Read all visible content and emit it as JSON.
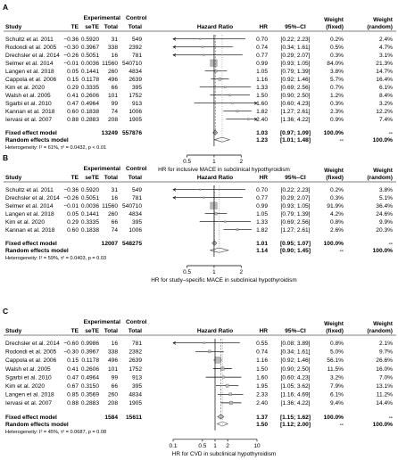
{
  "chart_data": [
    {
      "type": "forest",
      "panel_label": "A",
      "group_header": "Experimental",
      "group_header2": "Control",
      "columns": {
        "study": "Study",
        "te": "TE",
        "sete": "seTE",
        "exp_total": "Total",
        "ctrl_total": "Total",
        "hazard_ratio": "Hazard Ratio",
        "hr": "HR",
        "ci": "95%–CI",
        "weight_fixed": "Weight (fixed)",
        "weight_random": "Weight (random)"
      },
      "studies": [
        {
          "name": "Schultz et al. 2011",
          "te": "−0.36",
          "sete": "0.5920",
          "exp_total": "31",
          "ctrl_total": "549",
          "hr": 0.7,
          "lo": 0.22,
          "hi": 2.23,
          "hr_text": "0.70",
          "ci_text": "[0.22; 2.23]",
          "w_fixed": "0.2%",
          "w_random": "2.4%"
        },
        {
          "name": "Rodondi et al. 2005",
          "te": "−0.30",
          "sete": "0.3967",
          "exp_total": "338",
          "ctrl_total": "2392",
          "hr": 0.74,
          "lo": 0.34,
          "hi": 1.61,
          "hr_text": "0.74",
          "ci_text": "[0.34; 1.61]",
          "w_fixed": "0.5%",
          "w_random": "4.7%"
        },
        {
          "name": "Drechsler et al. 2014",
          "te": "−0.26",
          "sete": "0.5051",
          "exp_total": "16",
          "ctrl_total": "781",
          "hr": 0.77,
          "lo": 0.29,
          "hi": 2.07,
          "hr_text": "0.77",
          "ci_text": "[0.29; 2.07]",
          "w_fixed": "0.3%",
          "w_random": "3.1%"
        },
        {
          "name": "Selmer et al. 2014",
          "te": "−0.01",
          "sete": "0.0036",
          "exp_total": "11560",
          "ctrl_total": "540710",
          "hr": 0.99,
          "lo": 0.93,
          "hi": 1.05,
          "hr_text": "0.99",
          "ci_text": "[0.93; 1.05]",
          "w_fixed": "84.0%",
          "w_random": "21.3%"
        },
        {
          "name": "Langen et al. 2018",
          "te": "0.05",
          "sete": "0.1441",
          "exp_total": "260",
          "ctrl_total": "4834",
          "hr": 1.05,
          "lo": 0.79,
          "hi": 1.39,
          "hr_text": "1.05",
          "ci_text": "[0.79; 1.39]",
          "w_fixed": "3.8%",
          "w_random": "14.7%"
        },
        {
          "name": "Cappola et al. 2006",
          "te": "0.15",
          "sete": "0.1178",
          "exp_total": "496",
          "ctrl_total": "2639",
          "hr": 1.16,
          "lo": 0.92,
          "hi": 1.46,
          "hr_text": "1.16",
          "ci_text": "[0.92; 1.46]",
          "w_fixed": "5.7%",
          "w_random": "16.4%"
        },
        {
          "name": "Kim et al. 2020",
          "te": "0.29",
          "sete": "0.3335",
          "exp_total": "66",
          "ctrl_total": "395",
          "hr": 1.33,
          "lo": 0.69,
          "hi": 2.56,
          "hr_text": "1.33",
          "ci_text": "[0.69; 2.56]",
          "w_fixed": "0.7%",
          "w_random": "6.1%"
        },
        {
          "name": "Walsh et al. 2005",
          "te": "0.41",
          "sete": "0.2606",
          "exp_total": "101",
          "ctrl_total": "1752",
          "hr": 1.5,
          "lo": 0.9,
          "hi": 2.5,
          "hr_text": "1.50",
          "ci_text": "[0.90; 2.50]",
          "w_fixed": "1.2%",
          "w_random": "8.4%"
        },
        {
          "name": "Sgarbi et al. 2010",
          "te": "0.47",
          "sete": "0.4964",
          "exp_total": "99",
          "ctrl_total": "913",
          "hr": 1.6,
          "lo": 0.6,
          "hi": 4.23,
          "hr_text": "1.60",
          "ci_text": "[0.60; 4.23]",
          "w_fixed": "0.3%",
          "w_random": "3.2%"
        },
        {
          "name": "Kannan et al. 2018",
          "te": "0.60",
          "sete": "0.1838",
          "exp_total": "74",
          "ctrl_total": "1006",
          "hr": 1.82,
          "lo": 1.27,
          "hi": 2.61,
          "hr_text": "1.82",
          "ci_text": "[1.27; 2.61]",
          "w_fixed": "2.3%",
          "w_random": "12.2%"
        },
        {
          "name": "Iervasi et al. 2007",
          "te": "0.88",
          "sete": "0.2883",
          "exp_total": "208",
          "ctrl_total": "1905",
          "hr": 2.4,
          "lo": 1.36,
          "hi": 4.22,
          "hr_text": "2.40",
          "ci_text": "[1.36; 4.22]",
          "w_fixed": "0.9%",
          "w_random": "7.4%"
        }
      ],
      "fixed": {
        "label": "Fixed effect model",
        "exp_total": "13249",
        "ctrl_total": "557876",
        "hr": 1.03,
        "lo": 0.97,
        "hi": 1.09,
        "hr_text": "1.03",
        "ci_text": "[0.97; 1.09]",
        "w_fixed": "100.0%",
        "w_random": "--"
      },
      "random": {
        "label": "Random effects model",
        "hr": 1.23,
        "lo": 1.01,
        "hi": 1.48,
        "hr_text": "1.23",
        "ci_text": "[1.01; 1.48]",
        "w_fixed": "--",
        "w_random": "100.0%"
      },
      "heterogeneity": "Heterogeneity: I² = 61%, τ² = 0.0432, p < 0.01",
      "xaxis": {
        "ticks": [
          0.5,
          1,
          2
        ],
        "tick_labels": [
          "0.5",
          "1",
          "2"
        ],
        "range": [
          0.35,
          3.0
        ],
        "scale": "log"
      },
      "xlabel": "HR for inclusive MACE in subclinical hypothyroidism"
    },
    {
      "type": "forest",
      "panel_label": "B",
      "group_header": "Experimental",
      "group_header2": "Control",
      "columns": {
        "study": "Study",
        "te": "TE",
        "sete": "seTE",
        "exp_total": "Total",
        "ctrl_total": "Total",
        "hazard_ratio": "Hazard Ratio",
        "hr": "HR",
        "ci": "95%–CI",
        "weight_fixed": "Weight (fixed)",
        "weight_random": "Weight (random)"
      },
      "studies": [
        {
          "name": "Schultz et al. 2011",
          "te": "−0.36",
          "sete": "0.5920",
          "exp_total": "31",
          "ctrl_total": "549",
          "hr": 0.7,
          "lo": 0.22,
          "hi": 2.23,
          "hr_text": "0.70",
          "ci_text": "[0.22; 2.23]",
          "w_fixed": "0.2%",
          "w_random": "3.8%"
        },
        {
          "name": "Drechsler et al. 2014",
          "te": "−0.26",
          "sete": "0.5051",
          "exp_total": "16",
          "ctrl_total": "781",
          "hr": 0.77,
          "lo": 0.29,
          "hi": 2.07,
          "hr_text": "0.77",
          "ci_text": "[0.29; 2.07]",
          "w_fixed": "0.3%",
          "w_random": "5.1%"
        },
        {
          "name": "Selmer et al. 2014",
          "te": "−0.01",
          "sete": "0.0036",
          "exp_total": "11560",
          "ctrl_total": "540710",
          "hr": 0.99,
          "lo": 0.93,
          "hi": 1.05,
          "hr_text": "0.99",
          "ci_text": "[0.93; 1.05]",
          "w_fixed": "91.9%",
          "w_random": "36.4%"
        },
        {
          "name": "Langen et al. 2018",
          "te": "0.05",
          "sete": "0.1441",
          "exp_total": "260",
          "ctrl_total": "4834",
          "hr": 1.05,
          "lo": 0.79,
          "hi": 1.39,
          "hr_text": "1.05",
          "ci_text": "[0.79; 1.39]",
          "w_fixed": "4.2%",
          "w_random": "24.6%"
        },
        {
          "name": "Kim et al. 2020",
          "te": "0.29",
          "sete": "0.3335",
          "exp_total": "66",
          "ctrl_total": "395",
          "hr": 1.33,
          "lo": 0.69,
          "hi": 2.56,
          "hr_text": "1.33",
          "ci_text": "[0.69; 2.56]",
          "w_fixed": "0.8%",
          "w_random": "9.9%"
        },
        {
          "name": "Kannan et al. 2018",
          "te": "0.60",
          "sete": "0.1838",
          "exp_total": "74",
          "ctrl_total": "1006",
          "hr": 1.82,
          "lo": 1.27,
          "hi": 2.61,
          "hr_text": "1.82",
          "ci_text": "[1.27; 2.61]",
          "w_fixed": "2.6%",
          "w_random": "20.3%"
        }
      ],
      "fixed": {
        "label": "Fixed effect model",
        "exp_total": "12007",
        "ctrl_total": "548275",
        "hr": 1.01,
        "lo": 0.95,
        "hi": 1.07,
        "hr_text": "1.01",
        "ci_text": "[0.95; 1.07]",
        "w_fixed": "100.0%",
        "w_random": "--"
      },
      "random": {
        "label": "Random effects model",
        "hr": 1.14,
        "lo": 0.9,
        "hi": 1.45,
        "hr_text": "1.14",
        "ci_text": "[0.90; 1.45]",
        "w_fixed": "--",
        "w_random": "100.0%"
      },
      "heterogeneity": "Heterogeneity: I² = 59%, τ² = 0.0403, p = 0.03",
      "xaxis": {
        "ticks": [
          0.5,
          1,
          2
        ],
        "tick_labels": [
          "0.5",
          "1",
          "2"
        ],
        "range": [
          0.35,
          3.0
        ],
        "scale": "log"
      },
      "xlabel": "HR for study–specific MACE in subclinical hypothyroidism"
    },
    {
      "type": "forest",
      "panel_label": "C",
      "group_header": "Experimental",
      "group_header2": "Control",
      "columns": {
        "study": "Study",
        "te": "TE",
        "sete": "seTE",
        "exp_total": "Total",
        "ctrl_total": "Total",
        "hazard_ratio": "Hazard Ratio",
        "hr": "HR",
        "ci": "95%–CI",
        "weight_fixed": "Weight (fixed)",
        "weight_random": "Weight (random)"
      },
      "studies": [
        {
          "name": "Drechsler et al. 2014",
          "te": "−0.60",
          "sete": "0.9986",
          "exp_total": "16",
          "ctrl_total": "781",
          "hr": 0.55,
          "lo": 0.08,
          "hi": 3.89,
          "hr_text": "0.55",
          "ci_text": "[0.08; 3.89]",
          "w_fixed": "0.8%",
          "w_random": "2.1%"
        },
        {
          "name": "Rodondi et al. 2005",
          "te": "−0.30",
          "sete": "0.3967",
          "exp_total": "338",
          "ctrl_total": "2392",
          "hr": 0.74,
          "lo": 0.34,
          "hi": 1.61,
          "hr_text": "0.74",
          "ci_text": "[0.34; 1.61]",
          "w_fixed": "5.0%",
          "w_random": "9.7%"
        },
        {
          "name": "Cappola et al. 2006",
          "te": "0.15",
          "sete": "0.1178",
          "exp_total": "496",
          "ctrl_total": "2639",
          "hr": 1.16,
          "lo": 0.92,
          "hi": 1.46,
          "hr_text": "1.16",
          "ci_text": "[0.92; 1.46]",
          "w_fixed": "56.1%",
          "w_random": "26.6%"
        },
        {
          "name": "Walsh et al. 2005",
          "te": "0.41",
          "sete": "0.2606",
          "exp_total": "101",
          "ctrl_total": "1752",
          "hr": 1.5,
          "lo": 0.9,
          "hi": 2.5,
          "hr_text": "1.50",
          "ci_text": "[0.90; 2.50]",
          "w_fixed": "11.5%",
          "w_random": "16.0%"
        },
        {
          "name": "Sgarbi et al. 2010",
          "te": "0.47",
          "sete": "0.4964",
          "exp_total": "99",
          "ctrl_total": "913",
          "hr": 1.6,
          "lo": 0.6,
          "hi": 4.23,
          "hr_text": "1.60",
          "ci_text": "[0.60; 4.23]",
          "w_fixed": "3.2%",
          "w_random": "7.0%"
        },
        {
          "name": "Kim et al. 2020",
          "te": "0.67",
          "sete": "0.3150",
          "exp_total": "66",
          "ctrl_total": "395",
          "hr": 1.95,
          "lo": 1.05,
          "hi": 3.62,
          "hr_text": "1.95",
          "ci_text": "[1.05; 3.62]",
          "w_fixed": "7.9%",
          "w_random": "13.1%"
        },
        {
          "name": "Langen et al. 2018",
          "te": "0.85",
          "sete": "0.3569",
          "exp_total": "260",
          "ctrl_total": "4834",
          "hr": 2.33,
          "lo": 1.16,
          "hi": 4.69,
          "hr_text": "2.33",
          "ci_text": "[1.16; 4.69]",
          "w_fixed": "6.1%",
          "w_random": "11.2%"
        },
        {
          "name": "Iervasi et al. 2007",
          "te": "0.88",
          "sete": "0.2883",
          "exp_total": "208",
          "ctrl_total": "1905",
          "hr": 2.4,
          "lo": 1.36,
          "hi": 4.22,
          "hr_text": "2.40",
          "ci_text": "[1.36; 4.22]",
          "w_fixed": "9.4%",
          "w_random": "14.4%"
        }
      ],
      "fixed": {
        "label": "Fixed effect model",
        "exp_total": "1584",
        "ctrl_total": "15611",
        "hr": 1.37,
        "lo": 1.15,
        "hi": 1.62,
        "hr_text": "1.37",
        "ci_text": "[1.15; 1.62]",
        "w_fixed": "100.0%",
        "w_random": "--"
      },
      "random": {
        "label": "Random effects model",
        "hr": 1.5,
        "lo": 1.12,
        "hi": 2.0,
        "hr_text": "1.50",
        "ci_text": "[1.12; 2.00]",
        "w_fixed": "--",
        "w_random": "100.0%"
      },
      "heterogeneity": "Heterogeneity: I² = 45%, τ² = 0.0687, p = 0.08",
      "xaxis": {
        "ticks": [
          0.1,
          0.5,
          1,
          2,
          10
        ],
        "tick_labels": [
          "0.1",
          "0.5",
          "1",
          "2",
          "10"
        ],
        "range": [
          0.1,
          10
        ],
        "scale": "log"
      },
      "xlabel": "HR for CVD in subclinical hypothyroidism"
    }
  ]
}
